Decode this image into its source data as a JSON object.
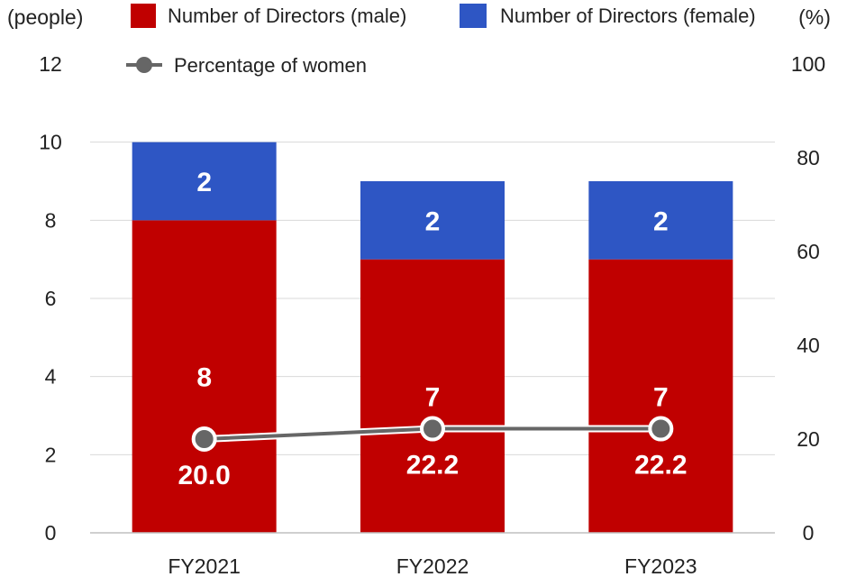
{
  "chart_data": {
    "type": "bar",
    "stacked": true,
    "categories": [
      "FY2021",
      "FY2022",
      "FY2023"
    ],
    "series": [
      {
        "name": "Number of Directors (male)",
        "values": [
          8,
          7,
          7
        ],
        "color": "#c00000",
        "axis": "left"
      },
      {
        "name": "Number of Directors (female)",
        "values": [
          2,
          2,
          2
        ],
        "color": "#2e56c4",
        "axis": "left"
      }
    ],
    "line_series": {
      "name": "Percentage of women",
      "values": [
        20.0,
        22.2,
        22.2
      ],
      "labels": [
        "20.0",
        "22.2",
        "22.2"
      ],
      "color": "#666666",
      "axis": "right"
    },
    "ylabel_left": "(people)",
    "ylabel_right": "(%)",
    "ylim_left": [
      0,
      12
    ],
    "yticks_left": [
      "0",
      "2",
      "4",
      "6",
      "8",
      "10",
      "12"
    ],
    "ylim_right": [
      0,
      100
    ],
    "yticks_right": [
      "0",
      "20",
      "40",
      "60",
      "80",
      "100"
    ],
    "grid": true,
    "legend_position": "top"
  }
}
